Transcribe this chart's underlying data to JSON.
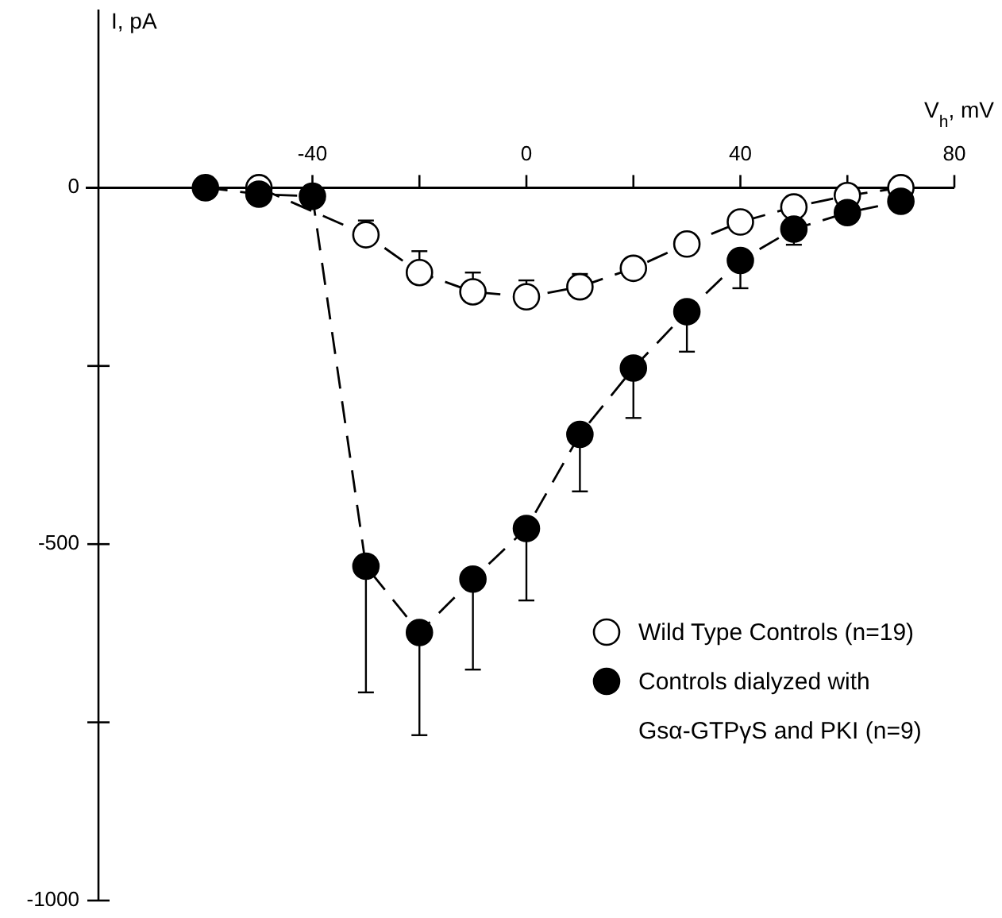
{
  "chart_data": {
    "type": "line",
    "xlabel": "V$_{h}$, mV",
    "ylabel": "I, pA",
    "xlim": [
      -80,
      80
    ],
    "ylim": [
      -1000,
      250
    ],
    "xticks": [
      {
        "value": -60,
        "label": null
      },
      -40,
      {
        "value": -20,
        "label": null
      },
      0,
      {
        "value": 20,
        "label": null
      },
      40,
      {
        "value": 60,
        "label": null
      },
      80
    ],
    "yticks": [
      0,
      {
        "value": -250,
        "label": null
      },
      -500,
      {
        "value": -750,
        "label": null
      },
      -1000
    ],
    "grid": false,
    "legend": "bottom right",
    "marker": "circle",
    "line_style": "dashed",
    "series": [
      {
        "name": "Wild Type Controls (n=19)",
        "color": "#ffffff",
        "x": [
          -50,
          -40,
          -30,
          -20,
          -10,
          0,
          10,
          20,
          30,
          40,
          50,
          60,
          70
        ],
        "values": [
          0,
          null,
          -66,
          -119,
          -146,
          -153,
          -139,
          -113,
          -79,
          -48,
          -27,
          -11,
          0
        ],
        "errors": [
          null,
          null,
          [
            -66,
            -46
          ],
          [
            -119,
            -89
          ],
          [
            -146,
            -119
          ],
          [
            -153,
            -130
          ],
          [
            -139,
            -121
          ],
          null,
          null,
          null,
          null,
          null,
          null
        ]
      },
      {
        "name": "Controls dialyzed with\nGsα-GTPγS and PKI (n=9)",
        "color": "#000000",
        "x": [
          -60,
          -50,
          -40,
          -30,
          -20,
          -10,
          0,
          10,
          20,
          30,
          40,
          50,
          60,
          70
        ],
        "values": [
          0,
          -9,
          -12,
          -531,
          -624,
          -549,
          -478,
          -346,
          -253,
          -174,
          -102,
          -58,
          -35,
          -19
        ],
        "errors": [
          null,
          null,
          null,
          [
            -708,
            -531
          ],
          [
            -768,
            -624
          ],
          [
            -676,
            -549
          ],
          [
            -579,
            -478
          ],
          [
            -426,
            -346
          ],
          [
            -323,
            -253
          ],
          [
            -230,
            -174
          ],
          [
            -141,
            -102
          ],
          [
            -80,
            -58
          ],
          null,
          null
        ]
      }
    ]
  }
}
